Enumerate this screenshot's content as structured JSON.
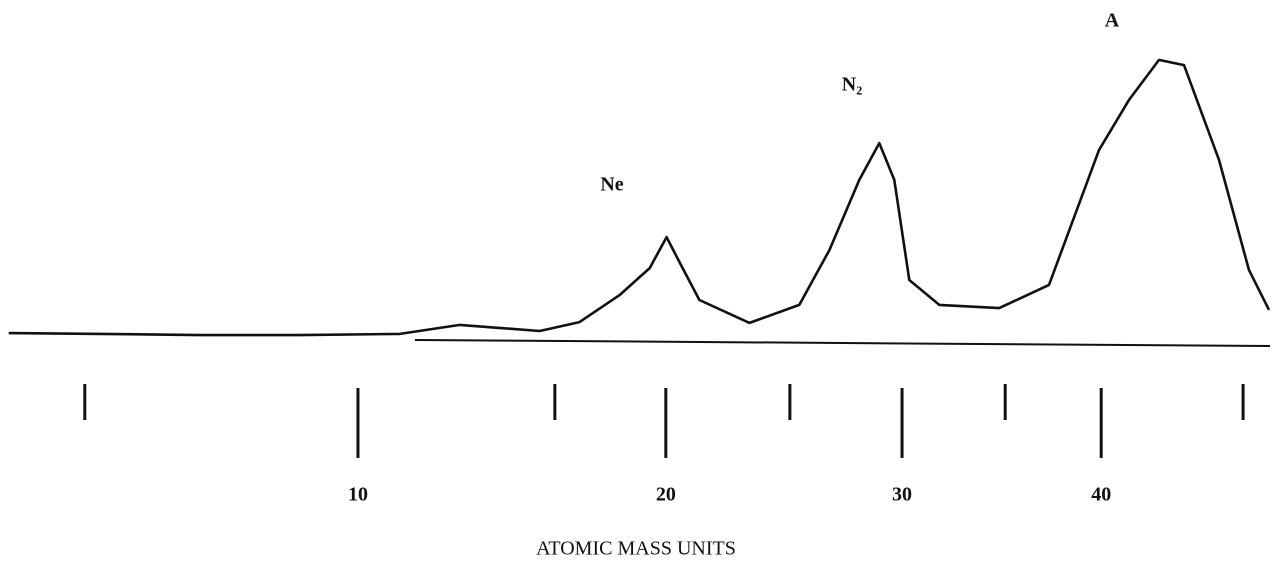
{
  "chart_data": {
    "type": "line",
    "xlabel": "ATOMIC MASS UNITS",
    "xscale": "sqrt",
    "xlim": [
      2.8,
      49.6
    ],
    "ylim": [
      0,
      100
    ],
    "xticks": [
      10,
      20,
      30,
      40
    ],
    "xminor_ticks": [
      4,
      16,
      25,
      35,
      48
    ],
    "annotations": [
      "Ne",
      "N₂",
      "A"
    ],
    "series": [
      {
        "color": "#111111",
        "x": [
          2.81,
          4.27,
          6.2,
          8.5,
          11.16,
          12.93,
          15.49,
          16.85,
          18.28,
          19.39,
          20.03,
          20.52,
          21.3,
          23.31,
          25.4,
          26.71,
          28.04,
          28.95,
          29.64,
          30.34,
          31.76,
          34.7,
          37.24,
          39.88,
          41.51,
          43.17,
          44.58,
          46.59,
          48.35,
          49.54
        ],
        "values": [
          1.7,
          1.4,
          1.0,
          1.0,
          1.4,
          4.5,
          2.4,
          5.5,
          14.8,
          24.1,
          34.8,
          26.2,
          13.1,
          5.2,
          11.4,
          30.3,
          54.5,
          67.2,
          54.5,
          20.0,
          11.4,
          10.3,
          18.3,
          64.8,
          82.1,
          95.9,
          94.1,
          61.4,
          23.4,
          9.7
        ]
      }
    ]
  }
}
